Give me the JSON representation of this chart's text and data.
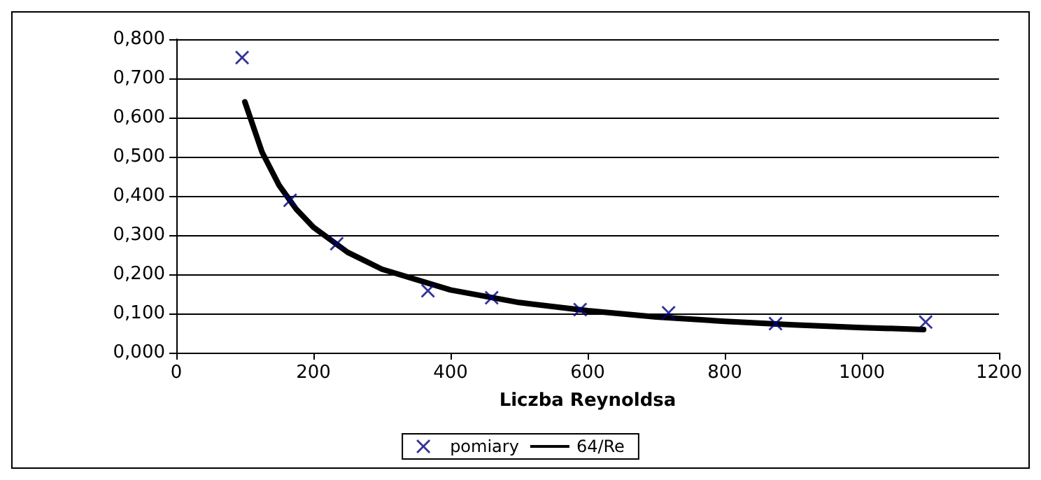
{
  "chart_data": {
    "type": "scatter",
    "xlabel": "Liczba Reynoldsa",
    "xlim": [
      0,
      1200
    ],
    "xticks": [
      0,
      200,
      400,
      600,
      800,
      1000,
      1200
    ],
    "ylim": [
      0,
      0.8
    ],
    "yticks": [
      {
        "value": 0,
        "label": "0,000"
      },
      {
        "value": 0.1,
        "label": "0,100"
      },
      {
        "value": 0.2,
        "label": "0,200"
      },
      {
        "value": 0.3,
        "label": "0,300"
      },
      {
        "value": 0.4,
        "label": "0,400"
      },
      {
        "value": 0.5,
        "label": "0,500"
      },
      {
        "value": 0.6,
        "label": "0,600"
      },
      {
        "value": 0.7,
        "label": "0,700"
      },
      {
        "value": 0.8,
        "label": "0,800"
      }
    ],
    "grid": "y",
    "legend": "bottom",
    "series": [
      {
        "name": "pomiary",
        "marker": "cross",
        "color": "#000080",
        "x": [
          96,
          166,
          234,
          367,
          460,
          589,
          718,
          874,
          1093
        ],
        "values": [
          0.753,
          0.389,
          0.278,
          0.158,
          0.14,
          0.11,
          0.102,
          0.074,
          0.078
        ]
      },
      {
        "name": "64/Re",
        "type": "line",
        "marker": "none",
        "color": "#000000",
        "x": [
          100,
          125,
          150,
          175,
          200,
          250,
          300,
          400,
          500,
          600,
          700,
          800,
          900,
          1000,
          1090
        ],
        "values": [
          0.64,
          0.512,
          0.427,
          0.366,
          0.32,
          0.256,
          0.213,
          0.16,
          0.128,
          0.107,
          0.091,
          0.08,
          0.071,
          0.064,
          0.059
        ]
      }
    ]
  }
}
